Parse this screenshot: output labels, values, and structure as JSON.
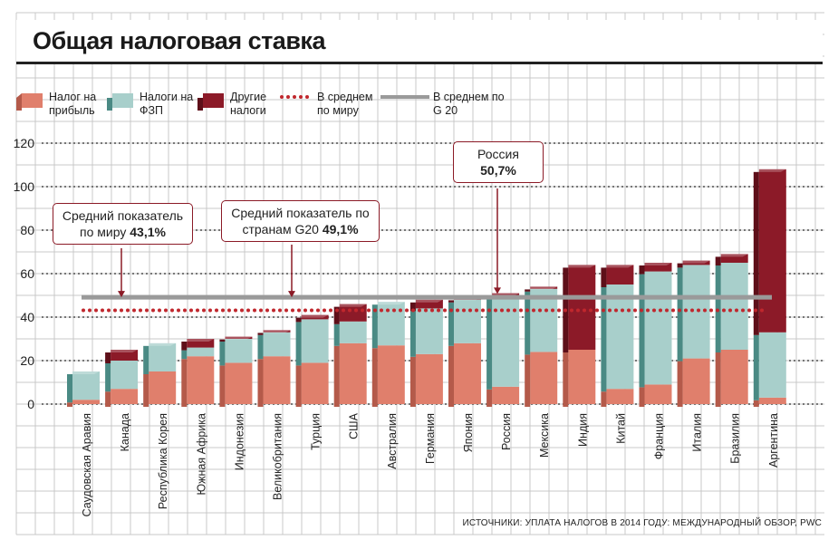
{
  "title": "Общая налоговая ставка",
  "legend": [
    {
      "key": "profit",
      "label": "Налог на прибыль",
      "color": "#e07f6c"
    },
    {
      "key": "fzp",
      "label": "Налоги на ФЗП",
      "color": "#a8cfcb"
    },
    {
      "key": "other",
      "label": "Другие налоги",
      "color": "#8c1a28"
    },
    {
      "key": "world_avg",
      "label": "В среднем по миру",
      "color": "#c0272d"
    },
    {
      "key": "g20_avg",
      "label": "В среднем по G 20",
      "color": "#9a9a9a"
    }
  ],
  "callouts": {
    "world": {
      "text": "Средний показатель по миру",
      "value": "43,1%"
    },
    "g20": {
      "text": "Средний показатель по странам G20",
      "value": "49,1%"
    },
    "russia": {
      "text": "Россия",
      "value": "50,7%"
    }
  },
  "source": "ИСТОЧНИКИ: УПЛАТА НАЛОГОВ В 2014 ГОДУ: МЕЖДУНАРОДНЫЙ ОБЗОР, PWC",
  "chart_data": {
    "type": "bar",
    "stacked": true,
    "title": "Общая налоговая ставка",
    "ylim": [
      0,
      120
    ],
    "yticks": [
      0,
      20,
      40,
      60,
      80,
      100,
      120
    ],
    "categories": [
      "Саудовская Аравия",
      "Канада",
      "Республика Корея",
      "Южная Африка",
      "Индонезия",
      "Великобритания",
      "Турция",
      "США",
      "Австралия",
      "Германия",
      "Япония",
      "Россия",
      "Мексика",
      "Индия",
      "Китай",
      "Франция",
      "Италия",
      "Бразилия",
      "Аргентина"
    ],
    "series": [
      {
        "name": "Налог на прибыль",
        "color": "#e07f6c",
        "values": [
          2,
          7,
          15,
          22,
          19,
          22,
          19,
          28,
          27,
          23,
          28,
          8,
          24,
          25,
          7,
          9,
          21,
          25,
          3
        ]
      },
      {
        "name": "Налоги на ФЗП",
        "color": "#a8cfcb",
        "values": [
          13,
          13,
          13,
          4,
          11,
          11,
          20,
          10,
          20,
          21,
          20,
          42,
          29,
          0,
          48,
          52,
          43,
          40,
          30
        ]
      },
      {
        "name": "Другие налоги",
        "color": "#8c1a28",
        "values": [
          0,
          5,
          0,
          4,
          1,
          1,
          2,
          8,
          0,
          4,
          1,
          1,
          1,
          39,
          9,
          4,
          2,
          4,
          75
        ]
      }
    ],
    "reference_lines": [
      {
        "name": "В среднем по миру",
        "value": 43.1,
        "color": "#c0272d",
        "style": "dotted"
      },
      {
        "name": "В среднем по G 20",
        "value": 49.1,
        "color": "#9a9a9a",
        "style": "solid"
      }
    ]
  }
}
